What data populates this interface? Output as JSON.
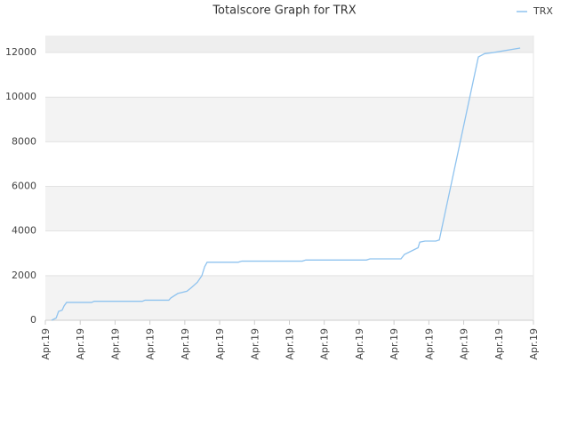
{
  "chart_data": {
    "type": "line",
    "title": "Totalscore Graph for TRX",
    "x": [
      0.18,
      0.31,
      0.38,
      0.48,
      0.54,
      0.61,
      1.33,
      1.4,
      2.78,
      2.86,
      3.54,
      3.6,
      3.8,
      4.06,
      4.18,
      4.36,
      4.49,
      4.57,
      4.64,
      5.53,
      5.64,
      7.37,
      7.47,
      9.21,
      9.31,
      10.2,
      10.3,
      10.69,
      10.74,
      10.89,
      11.2,
      11.3,
      12.42,
      12.6,
      12.85,
      13.62
    ],
    "series": [
      {
        "name": "TRX",
        "color": "#8fc3ef",
        "values": [
          0,
          100,
          400,
          450,
          650,
          800,
          800,
          850,
          850,
          900,
          900,
          1000,
          1200,
          1300,
          1450,
          1700,
          2000,
          2400,
          2600,
          2600,
          2650,
          2650,
          2700,
          2700,
          2750,
          2750,
          2950,
          3250,
          3500,
          3550,
          3550,
          3600,
          11800,
          11950,
          12000,
          12200
        ]
      }
    ],
    "xlim": [
      0,
      14
    ],
    "xticks": [
      {
        "value": 0,
        "label": "Apr.19"
      },
      {
        "value": 1,
        "label": "Apr.19"
      },
      {
        "value": 2,
        "label": "Apr.19"
      },
      {
        "value": 3,
        "label": "Apr.19"
      },
      {
        "value": 4,
        "label": "Apr.19"
      },
      {
        "value": 5,
        "label": "Apr.19"
      },
      {
        "value": 6,
        "label": "Apr.19"
      },
      {
        "value": 7,
        "label": "Apr.19"
      },
      {
        "value": 8,
        "label": "Apr.19"
      },
      {
        "value": 9,
        "label": "Apr.19"
      },
      {
        "value": 10,
        "label": "Apr.19"
      },
      {
        "value": 11,
        "label": "Apr.19"
      },
      {
        "value": 12,
        "label": "Apr.19"
      },
      {
        "value": 13,
        "label": "Apr.19"
      },
      {
        "value": 14,
        "label": "Apr.19"
      }
    ],
    "ylim": [
      0,
      12760
    ],
    "yticks": [
      0,
      2000,
      4000,
      6000,
      8000,
      10000,
      12000
    ],
    "grid": true,
    "legend": "top-right"
  }
}
